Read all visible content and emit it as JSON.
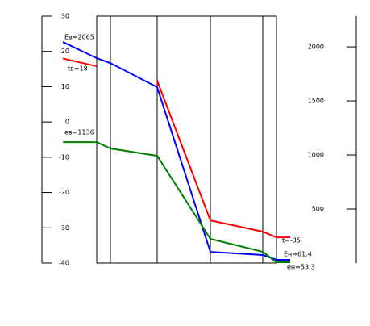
{
  "chart_data": {
    "type": "line",
    "x": [
      -42,
      0,
      17,
      75,
      141,
      206,
      223,
      240
    ],
    "xlim": [
      -42,
      240
    ],
    "ylim": [
      -40,
      30
    ],
    "yticks": [
      30,
      20,
      10,
      0,
      -10,
      -20,
      -30,
      -40
    ],
    "y2lim": [
      0,
      2284
    ],
    "y2ticks": [
      500,
      1000,
      1500,
      2000
    ],
    "series": [
      {
        "name": "t",
        "color": "#ff0000",
        "values": [
          18,
          15.8,
          null,
          11.7,
          -27.9,
          -31.1,
          -32.7,
          -32.7
        ]
      },
      {
        "name": "E",
        "color": "#0000ff",
        "axis": "y2",
        "values": [
          2045,
          1895,
          1850,
          1627,
          104,
          75,
          30,
          30
        ]
      },
      {
        "name": "e",
        "color": "#008000",
        "axis": "y2",
        "values": [
          1119,
          1119,
          1060,
          992,
          224,
          104,
          7,
          7
        ]
      }
    ],
    "annotations": [
      "Eв=2065",
      "tв=18",
      "eв=1136",
      "t=-35",
      "Eн=61.4",
      "eн=53.3"
    ]
  }
}
